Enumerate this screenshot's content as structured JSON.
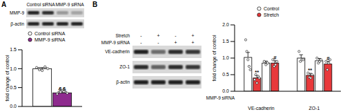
{
  "panel_labels": [
    "A",
    "B"
  ],
  "blot_a": {
    "header": [
      "Control siRNA",
      "MMP-9 siRNA"
    ],
    "rows": [
      "MMP-9",
      "β-actin"
    ]
  },
  "blot_b": {
    "rows": [
      "VE-cadherin",
      "ZO-1",
      "β-actin"
    ],
    "conditions": [
      {
        "label": "Stretch",
        "signs": [
          "-",
          "+",
          "-",
          "+"
        ]
      },
      {
        "label": "MMP-9 siRNA",
        "signs": [
          "-",
          "-",
          "+",
          "+"
        ]
      }
    ]
  },
  "chart_data": [
    {
      "type": "bar",
      "y_label": "fold change of control",
      "categories": [
        null
      ],
      "series": [
        {
          "name": "Control siRNA",
          "color": "#ffffff",
          "values": [
            1.0
          ],
          "error": [
            0.03
          ],
          "points": [
            [
              1.03,
              0.97,
              0.95,
              1.05,
              1.0
            ]
          ]
        },
        {
          "name": "MMP-9 siRNA",
          "color": "#8e2b8e",
          "values": [
            0.36
          ],
          "error": [
            0.03
          ],
          "points": [
            [
              0.33,
              0.38,
              0.4,
              0.35
            ]
          ],
          "annotations": [
            "&&"
          ]
        }
      ],
      "ylim": [
        0,
        1.5
      ],
      "yticks": [
        {
          "value": 0,
          "label": "0.0"
        },
        {
          "value": 0.5,
          "label": "0.5"
        },
        {
          "value": 1,
          "label": "1.0"
        },
        {
          "value": 1.5,
          "label": "1.5"
        }
      ]
    },
    {
      "type": "bar",
      "y_label": "fold change of control",
      "categories": [
        "VE-cadherin",
        "ZO-1"
      ],
      "x_conditions": {
        "label": "MMP-9 siRNA",
        "signs": [
          "-",
          "-",
          "+",
          "+"
        ]
      },
      "series": [
        {
          "name": "Control",
          "color": "#ffffff",
          "values": [
            1.02,
            1.0
          ],
          "error": [
            0.15,
            0.1
          ],
          "points": [
            [
              1.55,
              1.2,
              0.95,
              0.75,
              0.65
            ],
            [
              1.2,
              0.9,
              0.95,
              0.95
            ]
          ]
        },
        {
          "name": "Stretch",
          "color": "#e8393b",
          "values": [
            0.4,
            0.48
          ],
          "error": [
            0.07,
            0.06
          ],
          "points": [
            [
              0.35,
              0.5,
              0.25,
              0.45,
              0.4
            ],
            [
              0.55,
              0.42,
              0.4,
              0.5
            ]
          ],
          "annotations": [
            "**",
            "**"
          ]
        },
        {
          "name": "Control",
          "color": "#ffffff",
          "values": [
            0.85,
            0.92
          ],
          "error": [
            0.06,
            0.07
          ],
          "points": [
            [
              0.9,
              0.8,
              0.85
            ],
            [
              1.0,
              0.85,
              0.9,
              0.95
            ]
          ]
        },
        {
          "name": "Stretch",
          "color": "#e8393b",
          "values": [
            0.85,
            0.82
          ],
          "error": [
            0.07,
            0.08
          ],
          "points": [
            [
              0.95,
              0.75,
              0.8,
              0.9
            ],
            [
              0.9,
              0.65,
              0.85,
              0.95
            ]
          ],
          "annotations": [
            "#",
            "#"
          ]
        }
      ],
      "ylim": [
        0,
        2
      ],
      "yticks": [
        {
          "value": 0,
          "label": "0.0"
        },
        {
          "value": 0.5,
          "label": "0.5"
        },
        {
          "value": 1,
          "label": "1.0"
        },
        {
          "value": 1.5,
          "label": "1.5"
        },
        {
          "value": 2,
          "label": "2.0"
        }
      ]
    }
  ]
}
